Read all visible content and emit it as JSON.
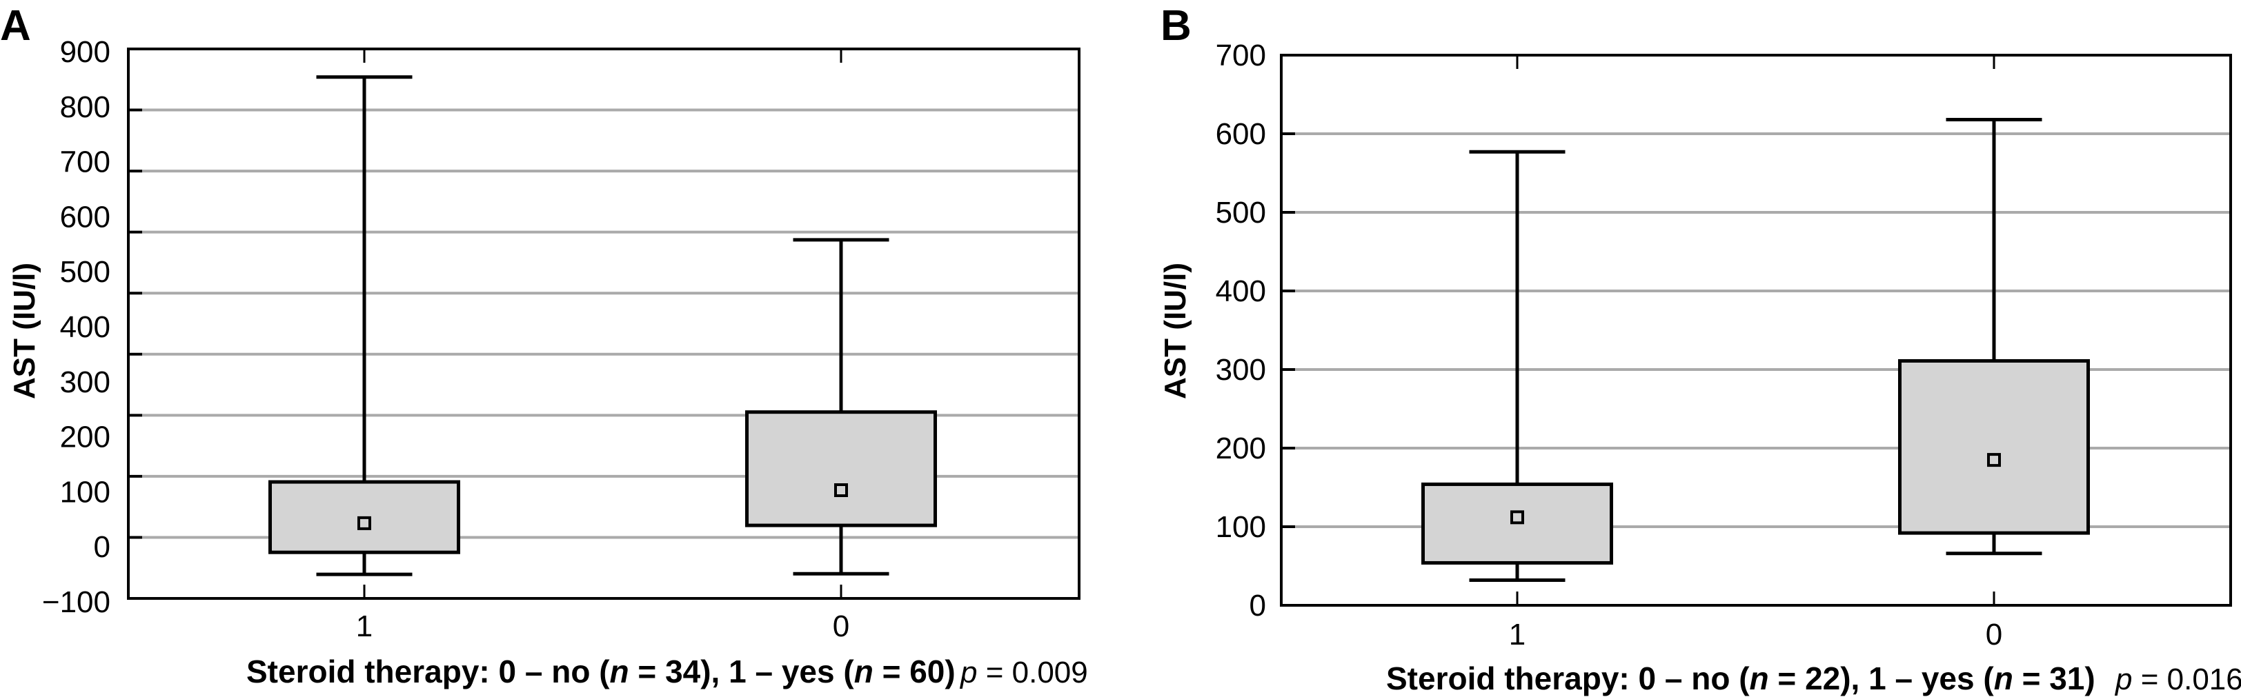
{
  "chart_data": [
    {
      "panel": "A",
      "type": "boxplot",
      "title": "",
      "ylabel": "AST (IU/l)",
      "xlabel": "Steroid therapy: 0 – no (n = 34), 1 – yes (n = 60)",
      "xlabel_parts": {
        "prefix": "Steroid therapy: 0 – no (",
        "n1": "n",
        "mid1": " = 34), 1 – yes (",
        "n2": "n",
        "suffix": " = 60)"
      },
      "p_value": {
        "p": "p",
        "rest": " = 0.009"
      },
      "y_ticks": [
        "900",
        "800",
        "700",
        "600",
        "500",
        "400",
        "300",
        "200",
        "100",
        "0",
        "−100"
      ],
      "ylim": [
        -100,
        900
      ],
      "grid": true,
      "categories": [
        "1",
        "0"
      ],
      "series": [
        {
          "name": "1",
          "whisker_high": 854,
          "q3": 118,
          "median": 43,
          "q1": -10,
          "whisker_low": -50
        },
        {
          "name": "0",
          "whisker_high": 558,
          "q3": 245,
          "median": 103,
          "q1": 39,
          "whisker_low": -49
        }
      ]
    },
    {
      "panel": "B",
      "type": "boxplot",
      "title": "",
      "ylabel": "AST (IU/l)",
      "xlabel": "Steroid therapy: 0 – no (n = 22), 1 – yes (n = 31)",
      "xlabel_parts": {
        "prefix": "Steroid therapy: 0 – no (",
        "n1": "n",
        "mid1": " = 22), 1 – yes (",
        "n2": "n",
        "suffix": " = 31)"
      },
      "p_value": {
        "p": "p",
        "rest": " = 0.016"
      },
      "y_ticks": [
        "700",
        "600",
        "500",
        "400",
        "300",
        "200",
        "100",
        "0"
      ],
      "ylim": [
        0,
        700
      ],
      "grid": true,
      "categories": [
        "1",
        "0"
      ],
      "series": [
        {
          "name": "1",
          "whisker_high": 577,
          "q3": 154,
          "median": 112,
          "q1": 54,
          "whisker_low": 32
        },
        {
          "name": "0",
          "whisker_high": 618,
          "q3": 311,
          "median": 185,
          "q1": 92,
          "whisker_low": 66
        }
      ]
    }
  ],
  "colors": {
    "box_fill": "#d4d4d4",
    "grid": "#aaaaaa",
    "stroke": "#000000"
  }
}
